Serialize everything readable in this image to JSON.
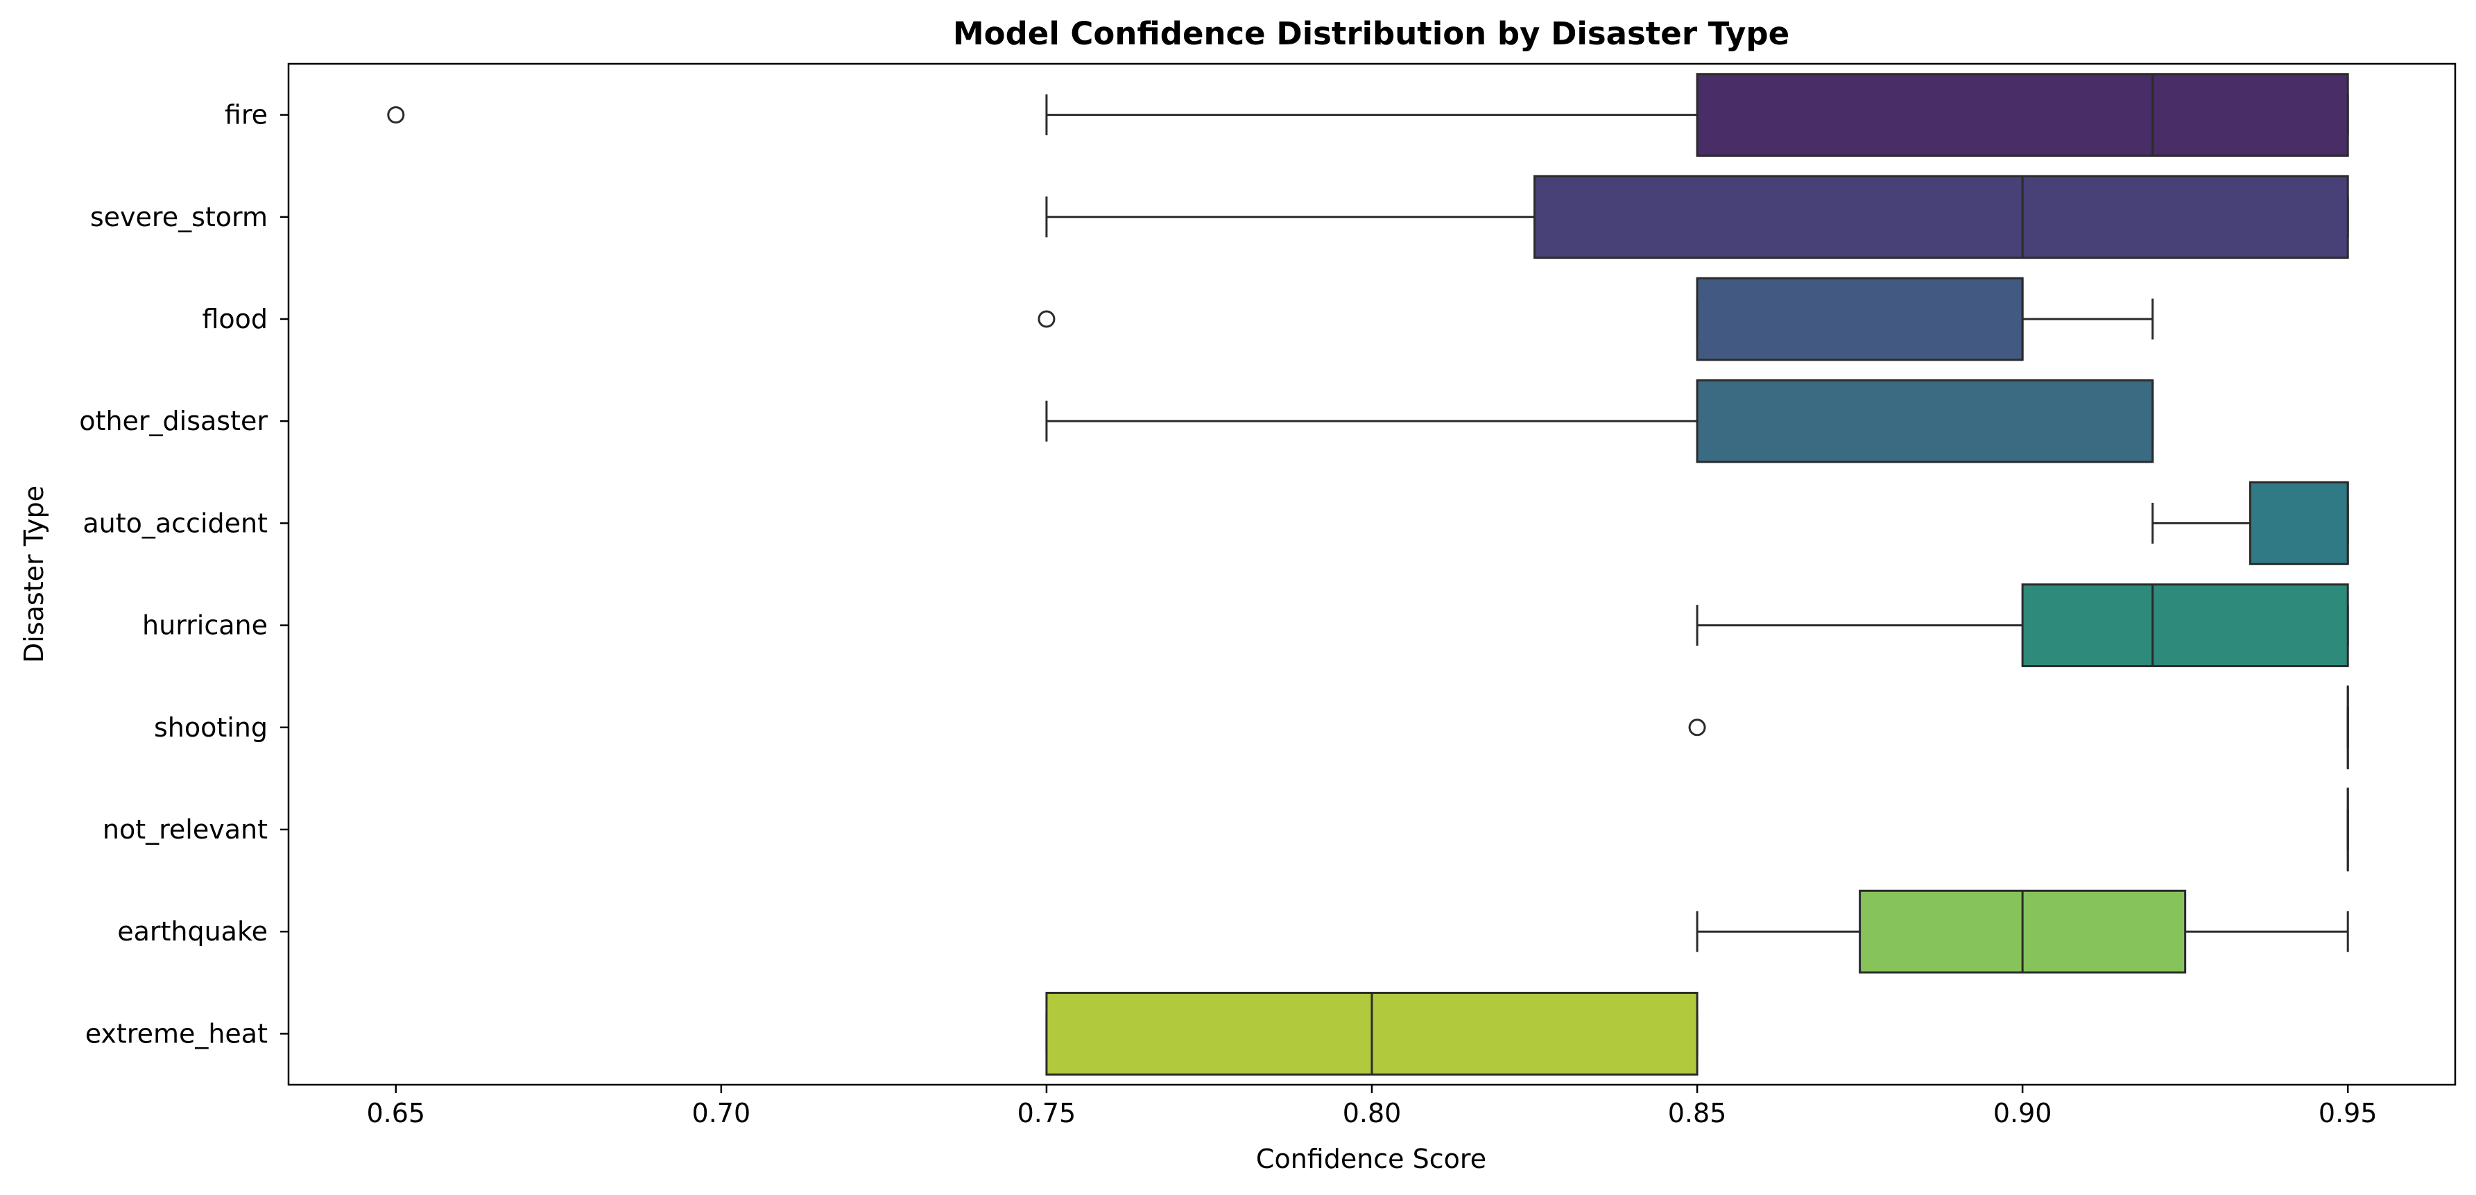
{
  "chart_data": {
    "type": "box",
    "orientation": "horizontal",
    "title": "Model Confidence Distribution by Disaster Type",
    "xlabel": "Confidence Score",
    "ylabel": "Disaster Type",
    "xlim": [
      0.6335,
      0.9665
    ],
    "xticks": [
      "0.65",
      "0.70",
      "0.75",
      "0.80",
      "0.85",
      "0.90",
      "0.95"
    ],
    "grid": false,
    "legend": "none",
    "categories": [
      {
        "name": "fire",
        "whisker_low": 0.75,
        "q1": 0.85,
        "median": 0.92,
        "q3": 0.95,
        "whisker_high": 0.95,
        "outliers": [
          0.65
        ],
        "color": "#482d66"
      },
      {
        "name": "severe_storm",
        "whisker_low": 0.75,
        "q1": 0.825,
        "median": 0.9,
        "q3": 0.95,
        "whisker_high": 0.95,
        "outliers": [],
        "color": "#484177"
      },
      {
        "name": "flood",
        "whisker_low": 0.85,
        "q1": 0.85,
        "median": 0.9,
        "q3": 0.9,
        "whisker_high": 0.92,
        "outliers": [
          0.75
        ],
        "color": "#425a82"
      },
      {
        "name": "other_disaster",
        "whisker_low": 0.75,
        "q1": 0.85,
        "median": 0.92,
        "q3": 0.92,
        "whisker_high": 0.92,
        "outliers": [],
        "color": "#3a6b83"
      },
      {
        "name": "auto_accident",
        "whisker_low": 0.92,
        "q1": 0.935,
        "median": 0.95,
        "q3": 0.95,
        "whisker_high": 0.95,
        "outliers": [],
        "color": "#307a85"
      },
      {
        "name": "hurricane",
        "whisker_low": 0.85,
        "q1": 0.9,
        "median": 0.92,
        "q3": 0.95,
        "whisker_high": 0.95,
        "outliers": [],
        "color": "#2e8a7a"
      },
      {
        "name": "shooting",
        "whisker_low": 0.95,
        "q1": 0.95,
        "median": 0.95,
        "q3": 0.95,
        "whisker_high": 0.95,
        "outliers": [
          0.85
        ],
        "color": "#3ea86e"
      },
      {
        "name": "not_relevant",
        "whisker_low": 0.95,
        "q1": 0.95,
        "median": 0.95,
        "q3": 0.95,
        "whisker_high": 0.95,
        "outliers": [],
        "color": "#62bb5c"
      },
      {
        "name": "earthquake",
        "whisker_low": 0.85,
        "q1": 0.875,
        "median": 0.9,
        "q3": 0.925,
        "whisker_high": 0.95,
        "outliers": [],
        "color": "#86c35a"
      },
      {
        "name": "extreme_heat",
        "whisker_low": 0.75,
        "q1": 0.75,
        "median": 0.8,
        "q3": 0.85,
        "whisker_high": 0.85,
        "outliers": [],
        "color": "#b1c93c"
      }
    ]
  }
}
